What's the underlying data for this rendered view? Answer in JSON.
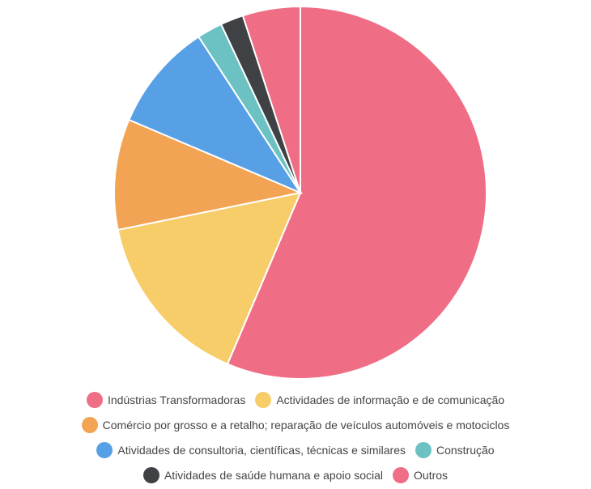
{
  "chart_data": {
    "type": "pie",
    "categories": [
      "Indústrias Transformadoras",
      "Actividades de informação e de comunicação",
      "Comércio por grosso e a retalho; reparação de veículos automóveis e motociclos",
      "Atividades de consultoria, científicas, técnicas e similares",
      "Construção",
      "Atividades de saúde humana e apoio social",
      "Outros"
    ],
    "values": [
      56.4,
      15.4,
      9.6,
      9.4,
      2.2,
      2.0,
      5.0
    ],
    "colors": [
      "#ef6e85",
      "#f7cd6a",
      "#f2a354",
      "#57a0e5",
      "#6cc2c2",
      "#3f4145",
      "#ef6e85"
    ],
    "legend": "bottom"
  }
}
